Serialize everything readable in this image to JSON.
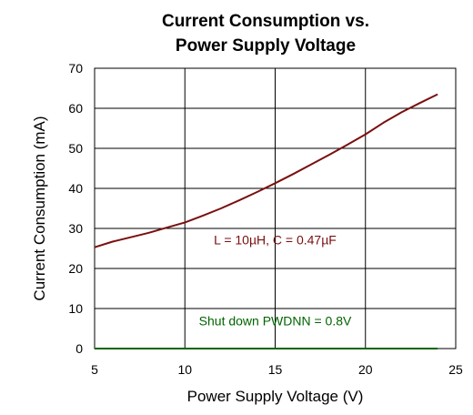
{
  "chart_data": {
    "type": "line",
    "title": [
      "Current Consumption vs.",
      "Power Supply Voltage"
    ],
    "xlabel": "Power Supply Voltage (V)",
    "ylabel": "Current Consumption (mA)",
    "xlim": [
      5,
      25
    ],
    "ylim": [
      0,
      70
    ],
    "xticks": [
      5,
      10,
      15,
      20,
      25
    ],
    "yticks": [
      0,
      10,
      20,
      30,
      40,
      50,
      60,
      70
    ],
    "grid": true,
    "series": [
      {
        "color": "#7a0f0f",
        "x": [
          5,
          6,
          7,
          8,
          9,
          10,
          11,
          12,
          13,
          14,
          15,
          16,
          17,
          18,
          19,
          20,
          21,
          22,
          23,
          24
        ],
        "y": [
          25.3,
          26.7,
          27.8,
          28.9,
          30.2,
          31.5,
          33.2,
          35.0,
          37.0,
          39.1,
          41.3,
          43.6,
          46.0,
          48.4,
          50.9,
          53.5,
          56.4,
          59.0,
          61.3,
          63.5
        ]
      },
      {
        "color": "#006400",
        "x": [
          5,
          24
        ],
        "y": [
          0,
          0
        ]
      }
    ],
    "annotations": [
      {
        "text": "L = 10µH, C = 0.47µF",
        "x": 15,
        "y": 26,
        "color": "#7a0f0f"
      },
      {
        "text": "Shut down PWDNN = 0.8V",
        "x": 15,
        "y": 5.8,
        "color": "#006400"
      }
    ]
  }
}
